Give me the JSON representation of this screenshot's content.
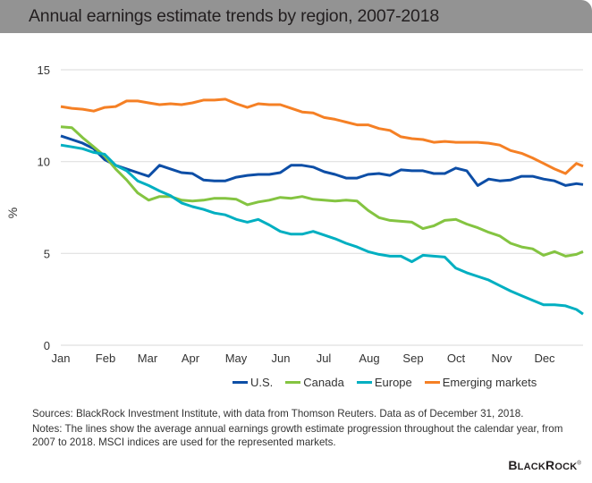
{
  "header": {
    "title": "Annual earnings estimate trends by region, 2007-2018"
  },
  "chart_data": {
    "type": "line",
    "title": "Annual earnings estimate trends by region, 2007-2018",
    "xlabel": "",
    "ylabel": "%",
    "ylim": [
      0,
      15
    ],
    "yticks": [
      0,
      5,
      10,
      15
    ],
    "grid": true,
    "legend_position": "bottom-right",
    "x_ticks": [
      "Jan",
      "Feb",
      "Mar",
      "Apr",
      "May",
      "Jun",
      "Jul",
      "Aug",
      "Sep",
      "Oct",
      "Nov",
      "Dec"
    ],
    "x_domain_months": [
      0,
      11.9
    ],
    "series": [
      {
        "name": "U.S.",
        "color": "#0d4ea6",
        "x": [
          0,
          0.25,
          0.5,
          0.75,
          1,
          1.25,
          1.5,
          1.75,
          2,
          2.25,
          2.5,
          2.75,
          3,
          3.25,
          3.5,
          3.75,
          4,
          4.25,
          4.5,
          4.75,
          5,
          5.25,
          5.5,
          5.75,
          6,
          6.25,
          6.5,
          6.75,
          7,
          7.25,
          7.5,
          7.75,
          8,
          8.25,
          8.5,
          8.75,
          9,
          9.25,
          9.5,
          9.75,
          10,
          10.25,
          10.5,
          10.75,
          11,
          11.25,
          11.5,
          11.75,
          11.9
        ],
        "values": [
          11.4,
          11.2,
          11.0,
          10.7,
          10.1,
          9.8,
          9.6,
          9.4,
          9.2,
          9.8,
          9.6,
          9.4,
          9.35,
          9.0,
          8.95,
          8.95,
          9.15,
          9.25,
          9.3,
          9.3,
          9.4,
          9.8,
          9.8,
          9.7,
          9.45,
          9.3,
          9.1,
          9.1,
          9.3,
          9.35,
          9.25,
          9.55,
          9.5,
          9.5,
          9.35,
          9.35,
          9.65,
          9.5,
          8.7,
          9.05,
          8.95,
          9.0,
          9.2,
          9.2,
          9.05,
          8.95,
          8.7,
          8.8,
          8.75
        ]
      },
      {
        "name": "Canada",
        "color": "#84c441",
        "x": [
          0,
          0.25,
          0.5,
          0.75,
          1,
          1.25,
          1.5,
          1.75,
          2,
          2.25,
          2.5,
          2.75,
          3,
          3.25,
          3.5,
          3.75,
          4,
          4.25,
          4.5,
          4.75,
          5,
          5.25,
          5.5,
          5.75,
          6,
          6.25,
          6.5,
          6.75,
          7,
          7.25,
          7.5,
          7.75,
          8,
          8.25,
          8.5,
          8.75,
          9,
          9.25,
          9.5,
          9.75,
          10,
          10.25,
          10.5,
          10.75,
          11,
          11.25,
          11.5,
          11.75,
          11.9
        ],
        "values": [
          11.9,
          11.85,
          11.3,
          10.8,
          10.3,
          9.6,
          9.0,
          8.3,
          7.9,
          8.1,
          8.1,
          7.9,
          7.85,
          7.9,
          8.0,
          8.0,
          7.95,
          7.65,
          7.8,
          7.9,
          8.05,
          8.0,
          8.1,
          7.95,
          7.9,
          7.85,
          7.9,
          7.85,
          7.35,
          6.95,
          6.8,
          6.75,
          6.7,
          6.35,
          6.5,
          6.8,
          6.85,
          6.6,
          6.4,
          6.15,
          5.95,
          5.55,
          5.35,
          5.25,
          4.9,
          5.1,
          4.85,
          4.95,
          5.1
        ]
      },
      {
        "name": "Europe",
        "color": "#00afc1",
        "x": [
          0,
          0.25,
          0.5,
          0.75,
          1,
          1.25,
          1.5,
          1.75,
          2,
          2.25,
          2.5,
          2.75,
          3,
          3.25,
          3.5,
          3.75,
          4,
          4.25,
          4.5,
          4.75,
          5,
          5.25,
          5.5,
          5.75,
          6,
          6.25,
          6.5,
          6.75,
          7,
          7.25,
          7.5,
          7.75,
          8,
          8.25,
          8.5,
          8.75,
          9,
          9.25,
          9.5,
          9.75,
          10,
          10.25,
          10.5,
          10.75,
          11,
          11.25,
          11.5,
          11.75,
          11.9
        ],
        "values": [
          10.9,
          10.8,
          10.7,
          10.5,
          10.4,
          9.8,
          9.5,
          8.95,
          8.7,
          8.4,
          8.15,
          7.75,
          7.55,
          7.4,
          7.2,
          7.1,
          6.85,
          6.7,
          6.85,
          6.55,
          6.2,
          6.05,
          6.05,
          6.2,
          6.0,
          5.8,
          5.55,
          5.35,
          5.1,
          4.95,
          4.85,
          4.85,
          4.55,
          4.9,
          4.85,
          4.8,
          4.2,
          3.95,
          3.75,
          3.55,
          3.25,
          2.95,
          2.7,
          2.45,
          2.2,
          2.2,
          2.15,
          1.95,
          1.7
        ]
      },
      {
        "name": "Emerging markets",
        "color": "#f58025",
        "x": [
          0,
          0.25,
          0.5,
          0.75,
          1,
          1.25,
          1.5,
          1.75,
          2,
          2.25,
          2.5,
          2.75,
          3,
          3.25,
          3.5,
          3.75,
          4,
          4.25,
          4.5,
          4.75,
          5,
          5.25,
          5.5,
          5.75,
          6,
          6.25,
          6.5,
          6.75,
          7,
          7.25,
          7.5,
          7.75,
          8,
          8.25,
          8.5,
          8.75,
          9,
          9.25,
          9.5,
          9.75,
          10,
          10.25,
          10.5,
          10.75,
          11,
          11.25,
          11.5,
          11.75,
          11.9
        ],
        "values": [
          13.0,
          12.9,
          12.85,
          12.75,
          12.95,
          13.0,
          13.3,
          13.3,
          13.2,
          13.1,
          13.15,
          13.1,
          13.2,
          13.35,
          13.35,
          13.4,
          13.15,
          12.95,
          13.15,
          13.1,
          13.1,
          12.9,
          12.7,
          12.65,
          12.4,
          12.3,
          12.15,
          12.0,
          12.0,
          11.8,
          11.7,
          11.35,
          11.25,
          11.2,
          11.05,
          11.1,
          11.05,
          11.05,
          11.05,
          11.0,
          10.9,
          10.6,
          10.45,
          10.2,
          9.9,
          9.6,
          9.35,
          9.9,
          9.75
        ]
      }
    ]
  },
  "legend": [
    {
      "label": "U.S.",
      "color": "#0d4ea6"
    },
    {
      "label": "Canada",
      "color": "#84c441"
    },
    {
      "label": "Europe",
      "color": "#00afc1"
    },
    {
      "label": "Emerging markets",
      "color": "#f58025"
    }
  ],
  "footer": {
    "sources": "Sources: BlackRock Investment Institute, with data from Thomson Reuters. Data as of December 31, 2018.",
    "notes": "Notes: The lines show the average annual earnings growth estimate progression throughout the calendar year, from 2007 to 2018. MSCI indices are used for the represented markets.",
    "logo_big_b": "B",
    "logo_lack": "LACK",
    "logo_big_r": "R",
    "logo_ock": "OCK",
    "logo_mark": "®"
  }
}
